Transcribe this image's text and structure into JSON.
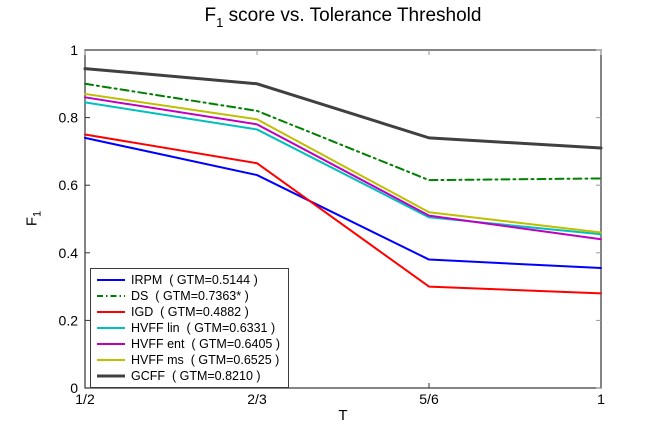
{
  "title": {
    "prefix": "F",
    "sub": "1",
    "rest": " score vs. Tolerance Threshold"
  },
  "axes": {
    "x_label": "T",
    "y_label": {
      "prefix": "F",
      "sub": "1"
    }
  },
  "colors": {
    "axis_box": "#333333",
    "mirrored_tick": "#999999",
    "background": "#ffffff"
  },
  "chart_data": {
    "type": "line",
    "title": "F1 score vs. Tolerance Threshold",
    "xlabel": "T",
    "ylabel": "F1",
    "x_tick_labels": [
      "1/2",
      "2/3",
      "5/6",
      "1"
    ],
    "x_values": [
      0.5,
      0.6667,
      0.8333,
      1.0
    ],
    "y_ticks": [
      0,
      0.2,
      0.4,
      0.6,
      0.8,
      1
    ],
    "y_tick_labels": [
      "0",
      "0.2",
      "0.4",
      "0.6",
      "0.8",
      "1"
    ],
    "ylim": [
      0,
      1
    ],
    "grid": false,
    "legend_position": "lower-left",
    "series": [
      {
        "name": "IRPM",
        "legend_label": "IRPM  ( GTM=0.5144 )",
        "color": "#0000FF",
        "style": "solid",
        "width": 2,
        "values": [
          0.74,
          0.63,
          0.38,
          0.355
        ]
      },
      {
        "name": "DS",
        "legend_label": "DS  ( GTM=0.7363* )",
        "color": "#008000",
        "style": "dash-dot",
        "width": 2,
        "values": [
          0.9,
          0.82,
          0.615,
          0.62
        ]
      },
      {
        "name": "IGD",
        "legend_label": "IGD  ( GTM=0.4882 )",
        "color": "#FF0000",
        "style": "solid",
        "width": 2,
        "values": [
          0.75,
          0.665,
          0.3,
          0.28
        ]
      },
      {
        "name": "HVFF lin",
        "legend_label": "HVFF lin  ( GTM=0.6331 )",
        "color": "#00BFBF",
        "style": "solid",
        "width": 2,
        "values": [
          0.845,
          0.765,
          0.505,
          0.455
        ]
      },
      {
        "name": "HVFF ent",
        "legend_label": "HVFF ent  ( GTM=0.6405 )",
        "color": "#BF00BF",
        "style": "solid",
        "width": 2,
        "values": [
          0.86,
          0.78,
          0.51,
          0.44
        ]
      },
      {
        "name": "HVFF ms",
        "legend_label": "HVFF ms  ( GTM=0.6525 )",
        "color": "#BFBF00",
        "style": "solid",
        "width": 2,
        "values": [
          0.87,
          0.795,
          0.52,
          0.46
        ]
      },
      {
        "name": "GCFF",
        "legend_label": "GCFF  ( GTM=0.8210 )",
        "color": "#404040",
        "style": "solid",
        "width": 3,
        "values": [
          0.945,
          0.9,
          0.74,
          0.71
        ]
      }
    ]
  }
}
